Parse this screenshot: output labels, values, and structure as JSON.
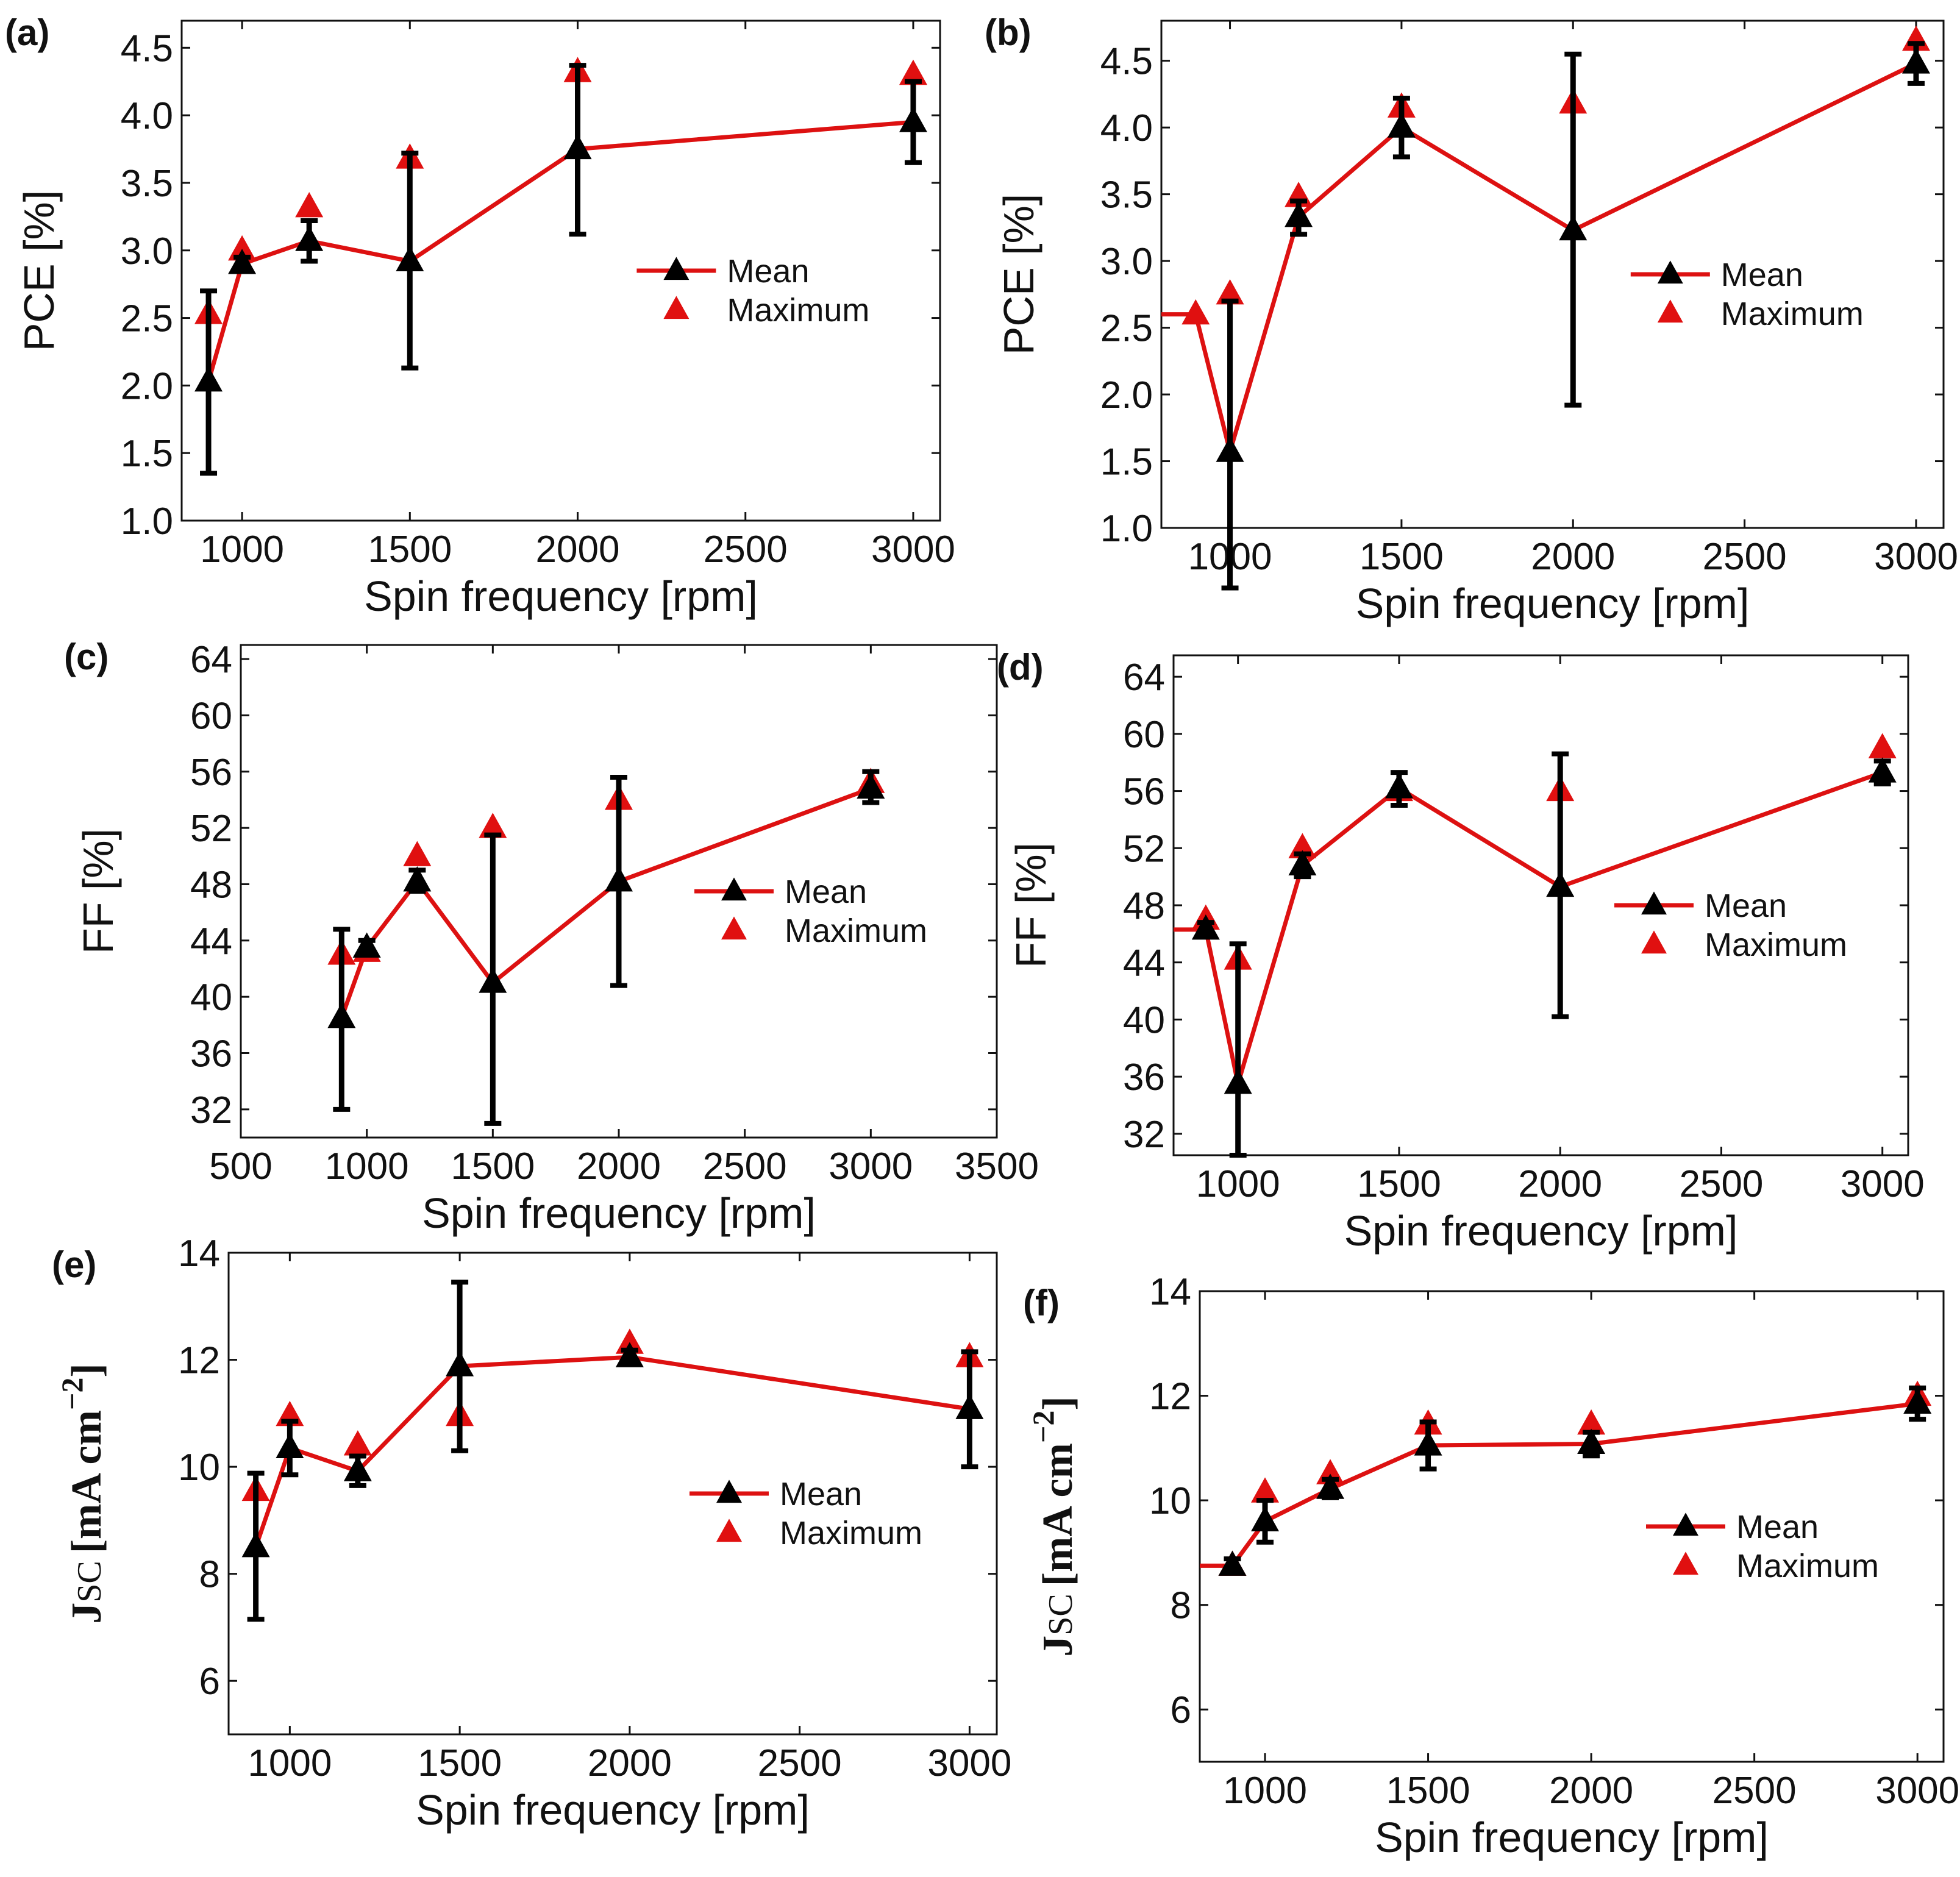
{
  "figure": {
    "description_colors": {
      "mean_line": "#dd1111",
      "mean_marker": "#000000",
      "max_marker": "#e01010"
    }
  },
  "chart_data": [
    {
      "id": "a",
      "panel_label": "(a)",
      "type": "line",
      "xlabel": "Spin frequency [rpm]",
      "ylabel": "PCE [%]",
      "xlim": [
        820,
        3080
      ],
      "ylim": [
        1.0,
        4.7
      ],
      "xticks": [
        1000,
        1500,
        2000,
        2500,
        3000
      ],
      "yticks": [
        1.0,
        1.5,
        2.0,
        2.5,
        3.0,
        3.5,
        4.0,
        4.5
      ],
      "ytick_labels": [
        "1.0",
        "1.5",
        "2.0",
        "2.5",
        "3.0",
        "3.5",
        "4.0",
        "4.5"
      ],
      "legend": [
        "Mean",
        "Maximum"
      ],
      "series": [
        {
          "name": "Mean",
          "x": [
            900,
            1000,
            1200,
            1500,
            2000,
            3000
          ],
          "values": [
            2.03,
            2.9,
            3.07,
            2.92,
            3.75,
            3.95
          ],
          "error_low": [
            1.35,
            2.85,
            2.92,
            2.13,
            3.12,
            3.65
          ],
          "error_high": [
            2.7,
            2.95,
            3.22,
            3.72,
            4.37,
            4.25
          ]
        },
        {
          "name": "Maximum",
          "x": [
            900,
            1000,
            1200,
            1500,
            2000,
            3000
          ],
          "values": [
            2.53,
            3.0,
            3.32,
            3.68,
            4.32,
            4.3
          ]
        }
      ]
    },
    {
      "id": "b",
      "panel_label": "(b)",
      "type": "line",
      "xlabel": "Spin frequency [rpm]",
      "ylabel": "PCE [%]",
      "xlim": [
        800,
        3080
      ],
      "ylim": [
        1.0,
        4.8
      ],
      "xticks": [
        1000,
        1500,
        2000,
        2500,
        3000
      ],
      "yticks": [
        1.0,
        1.5,
        2.0,
        2.5,
        3.0,
        3.5,
        4.0,
        4.5
      ],
      "ytick_labels": [
        "1.0",
        "1.5",
        "2.0",
        "2.5",
        "3.0",
        "3.5",
        "4.0",
        "4.5"
      ],
      "legend": [
        "Mean",
        "Maximum"
      ],
      "series": [
        {
          "name": "Mean",
          "x": [
            800,
            900,
            1000,
            1200,
            1500,
            2000,
            3000
          ],
          "values": [
            2.6,
            2.6,
            1.57,
            3.33,
            4.0,
            3.23,
            4.48
          ],
          "error_low": [
            null,
            null,
            0.55,
            3.2,
            3.78,
            1.92,
            4.33
          ],
          "error_high": [
            null,
            null,
            2.7,
            3.45,
            4.22,
            4.55,
            4.63
          ]
        },
        {
          "name": "Maximum",
          "x": [
            900,
            1000,
            1200,
            1500,
            2000,
            3000
          ],
          "values": [
            2.6,
            2.75,
            3.48,
            4.15,
            4.18,
            4.65
          ]
        }
      ]
    },
    {
      "id": "c",
      "panel_label": "(c)",
      "type": "line",
      "xlabel": "Spin frequency [rpm]",
      "ylabel": "FF [%]",
      "xlim": [
        500,
        3500
      ],
      "ylim": [
        30,
        65
      ],
      "xticks": [
        500,
        1000,
        1500,
        2000,
        2500,
        3000,
        3500
      ],
      "yticks": [
        32,
        36,
        40,
        44,
        48,
        52,
        56,
        60,
        64
      ],
      "ytick_labels": [
        "32",
        "36",
        "40",
        "44",
        "48",
        "52",
        "56",
        "60",
        "64"
      ],
      "legend": [
        "Mean",
        "Maximum"
      ],
      "series": [
        {
          "name": "Mean",
          "x": [
            900,
            1000,
            1200,
            1500,
            2000,
            3000
          ],
          "values": [
            38.5,
            43.5,
            48.2,
            41.0,
            48.2,
            54.8
          ],
          "error_low": [
            32.0,
            43.0,
            47.5,
            31.0,
            40.8,
            53.8
          ],
          "error_high": [
            44.8,
            44.0,
            49.0,
            51.5,
            55.6,
            56.0
          ]
        },
        {
          "name": "Maximum",
          "x": [
            900,
            1000,
            1200,
            1500,
            2000,
            3000
          ],
          "values": [
            43.0,
            43.2,
            50.0,
            52.0,
            54.0,
            55.2
          ]
        }
      ]
    },
    {
      "id": "d",
      "panel_label": "(d)",
      "type": "line",
      "xlabel": "Spin frequency [rpm]",
      "ylabel": "FF [%]",
      "xlim": [
        800,
        3080
      ],
      "ylim": [
        30.5,
        65.5
      ],
      "xticks": [
        1000,
        1500,
        2000,
        2500,
        3000
      ],
      "yticks": [
        32,
        36,
        40,
        44,
        48,
        52,
        56,
        60,
        64
      ],
      "ytick_labels": [
        "32",
        "36",
        "40",
        "44",
        "48",
        "52",
        "56",
        "60",
        "64"
      ],
      "legend": [
        "Mean",
        "Maximum"
      ],
      "series": [
        {
          "name": "Mean",
          "x": [
            800,
            900,
            1000,
            1200,
            1500,
            2000,
            3000
          ],
          "values": [
            46.3,
            46.3,
            35.5,
            50.8,
            56.2,
            49.3,
            57.3
          ],
          "error_low": [
            null,
            45.8,
            30.5,
            50.0,
            55.0,
            40.2,
            56.5
          ],
          "error_high": [
            null,
            46.8,
            45.3,
            51.6,
            57.3,
            58.6,
            58.1
          ]
        },
        {
          "name": "Maximum",
          "x": [
            900,
            1000,
            1200,
            1500,
            2000,
            3000
          ],
          "values": [
            47.0,
            44.2,
            52.0,
            56.0,
            56.0,
            59.0
          ]
        }
      ]
    },
    {
      "id": "e",
      "panel_label": "(e)",
      "type": "line",
      "xlabel": "Spin frequency [rpm]",
      "ylabel": "J",
      "ylabel_sub": "SC",
      "ylabel_unit": "[mA cm",
      "ylabel_sup": "−2",
      "ylabel_close": "]",
      "xlim": [
        820,
        3080
      ],
      "ylim": [
        5.0,
        14.0
      ],
      "xticks": [
        1000,
        1500,
        2000,
        2500,
        3000
      ],
      "yticks": [
        6,
        8,
        10,
        12,
        14
      ],
      "ytick_labels": [
        "6",
        "8",
        "10",
        "12",
        "14"
      ],
      "legend": [
        "Mean",
        "Maximum"
      ],
      "series": [
        {
          "name": "Mean",
          "x": [
            900,
            1000,
            1200,
            1500,
            2000,
            3000
          ],
          "values": [
            8.5,
            10.35,
            9.92,
            11.88,
            12.05,
            11.08
          ],
          "error_low": [
            7.15,
            9.85,
            9.65,
            10.3,
            11.92,
            10.0
          ],
          "error_high": [
            9.88,
            10.85,
            10.2,
            13.45,
            12.18,
            12.15
          ]
        },
        {
          "name": "Maximum",
          "x": [
            900,
            1000,
            1200,
            1500,
            2000,
            3000
          ],
          "values": [
            9.55,
            10.95,
            10.4,
            10.95,
            12.3,
            12.05
          ]
        }
      ]
    },
    {
      "id": "f",
      "panel_label": "(f)",
      "type": "line",
      "xlabel": "Spin frequency [rpm]",
      "ylabel": "J",
      "ylabel_sub": "SC",
      "ylabel_unit": "[mA cm",
      "ylabel_sup": "−2",
      "ylabel_close": "]",
      "xlim": [
        800,
        3080
      ],
      "ylim": [
        5.0,
        14.0
      ],
      "xticks": [
        1000,
        1500,
        2000,
        2500,
        3000
      ],
      "yticks": [
        6,
        8,
        10,
        12,
        14
      ],
      "ytick_labels": [
        "6",
        "8",
        "10",
        "12",
        "14"
      ],
      "legend": [
        "Mean",
        "Maximum"
      ],
      "series": [
        {
          "name": "Mean",
          "x": [
            800,
            900,
            1000,
            1200,
            1500,
            2000,
            3000
          ],
          "values": [
            8.75,
            8.75,
            9.6,
            10.22,
            11.05,
            11.08,
            11.85
          ],
          "error_low": [
            null,
            8.62,
            9.2,
            10.05,
            10.6,
            10.85,
            11.55
          ],
          "error_high": [
            null,
            8.88,
            10.0,
            10.4,
            11.5,
            11.3,
            12.15
          ]
        },
        {
          "name": "Maximum",
          "x": [
            900,
            1000,
            1200,
            1500,
            2000,
            3000
          ],
          "values": [
            8.75,
            10.15,
            10.5,
            11.45,
            11.45,
            12.0
          ]
        }
      ]
    }
  ]
}
